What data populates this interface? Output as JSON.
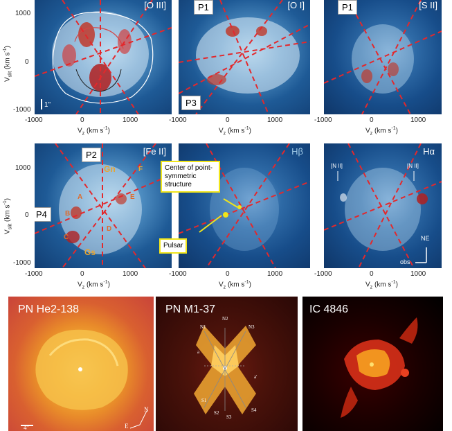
{
  "top_row": {
    "panels": [
      {
        "label": "[O III]",
        "box": ""
      },
      {
        "label": "[O I]",
        "box": "P1",
        "box2": "P3"
      },
      {
        "label": "[S II]",
        "box": "P1"
      }
    ],
    "ylabel": "V",
    "ylabel_sub": "slit",
    "ylabel_unit": " (km s",
    "ylabel_exp": "-1",
    "ylabel_close": ")",
    "y_ticks": [
      "1000",
      "0",
      "-1000"
    ],
    "x_ticks": [
      "-1000",
      "0",
      "1000"
    ],
    "xlabel": "V",
    "xlabel_sub": "z",
    "xlabel_unit": " (km s",
    "xlabel_exp": "-1",
    "xlabel_close": ")",
    "scale": "1\""
  },
  "mid_row": {
    "panels": [
      {
        "label": "[Fe II]",
        "box": "P2",
        "box2": "P4"
      },
      {
        "label": "Hβ"
      },
      {
        "label": "Hα"
      }
    ],
    "knots": [
      "Gn",
      "F",
      "A",
      "E",
      "B",
      "D",
      "C",
      "Gs"
    ],
    "nii_left": "[N II]",
    "nii_right": "[N II]",
    "center_note": "Center of point-symmetric structure",
    "pulsar_note": "Pulsar",
    "compass_ne": "NE",
    "compass_obs": "obs"
  },
  "bottom_row": {
    "panels": [
      {
        "title": "PN He2-138",
        "compass_n": "N",
        "compass_e": "E",
        "scale": "4\""
      },
      {
        "title": "PN M1-37",
        "labels": [
          "N1",
          "N2",
          "N3",
          "a",
          "a'",
          "S1",
          "S2",
          "S3",
          "S4"
        ]
      },
      {
        "title": "IC 4846"
      }
    ]
  },
  "colors": {
    "dashed_line": "#e3282c",
    "contour_white": "#ffffff",
    "contour_dark": "#1a1a1a",
    "contour_red": "#d54444",
    "annotation_border": "#f1e51a",
    "knot_label": "#e8a530"
  }
}
